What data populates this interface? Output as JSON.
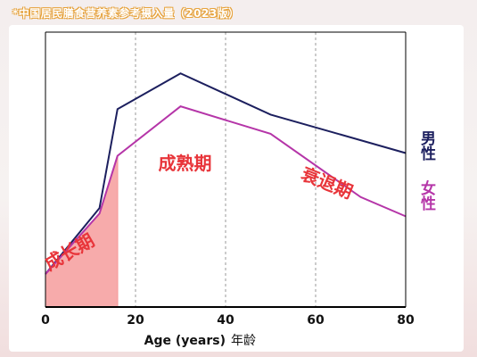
{
  "header": {
    "source_note": "*中国居民膳食营养素参考摄入量（2023版）"
  },
  "colors": {
    "male": "#1c1f5e",
    "female": "#b535a8",
    "growth_fill": "#f6a2a2",
    "phase_text": "#e8353a",
    "grid": "#9a9a9a"
  },
  "chart_data": {
    "type": "line",
    "title": "",
    "xlabel": "Age (years)",
    "xlabel_cn": "年龄",
    "ylabel": "",
    "xlim": [
      0,
      80
    ],
    "ylim": [
      0,
      100
    ],
    "x_ticks": [
      0,
      20,
      40,
      60,
      80
    ],
    "grid": "vertical-dashed",
    "series": [
      {
        "name": "男性",
        "x": [
          0,
          12,
          16,
          30,
          50,
          80
        ],
        "values": [
          12,
          36,
          72,
          85,
          70,
          56
        ]
      },
      {
        "name": "女性",
        "x": [
          0,
          12,
          16,
          30,
          50,
          70,
          80
        ],
        "values": [
          12,
          34,
          55,
          73,
          63,
          40,
          33
        ]
      }
    ],
    "shaded_region": {
      "x_from": 0,
      "x_to": 16,
      "under_series": "女性"
    },
    "legend_position": "right",
    "annotations": [
      {
        "text": "成长期",
        "x": 6,
        "y": 18,
        "rotate": -30
      },
      {
        "text": "成熟期",
        "x": 31,
        "y": 50,
        "rotate": 0
      },
      {
        "text": "衰退期",
        "x": 62,
        "y": 43,
        "rotate": 22
      }
    ]
  }
}
